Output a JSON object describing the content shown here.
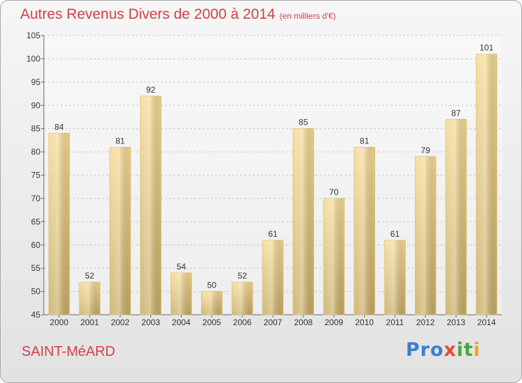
{
  "chart_data": {
    "type": "bar",
    "title": "Autres Revenus Divers de 2000 à 2014",
    "subtitle": "(en milliers d'€)",
    "categories": [
      "2000",
      "2001",
      "2002",
      "2003",
      "2004",
      "2005",
      "2006",
      "2007",
      "2008",
      "2009",
      "2010",
      "2011",
      "2012",
      "2013",
      "2014"
    ],
    "values": [
      84,
      52,
      81,
      92,
      54,
      50,
      52,
      61,
      85,
      70,
      81,
      61,
      79,
      87,
      101
    ],
    "ylim": [
      45,
      105
    ],
    "yticks": [
      45,
      50,
      55,
      60,
      65,
      70,
      75,
      80,
      85,
      90,
      95,
      100,
      105
    ],
    "grid": true,
    "bar_color": "#e8cf86"
  },
  "footer": {
    "city": "SAINT-MéARD",
    "logo": [
      "Pro",
      "x",
      "it",
      "i"
    ]
  }
}
